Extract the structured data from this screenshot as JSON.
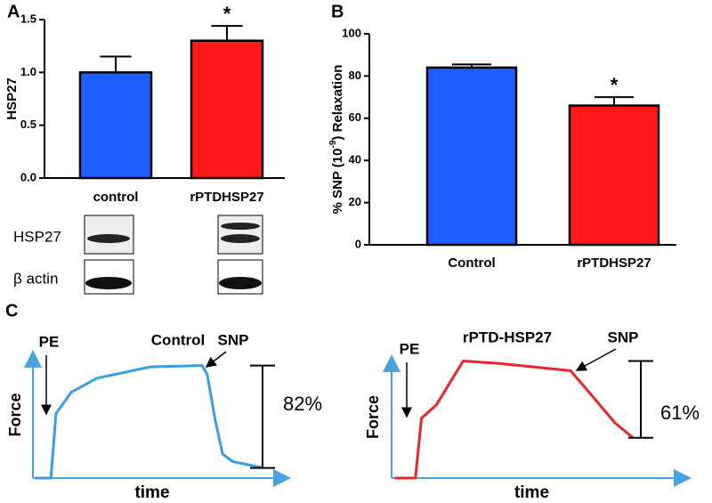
{
  "chart_data": [
    {
      "type": "bar",
      "panel": "A",
      "y_label": "HSP27",
      "categories": [
        "control",
        "rPTDHSP27"
      ],
      "values": [
        1.0,
        1.3
      ],
      "errors": [
        0.15,
        0.14
      ],
      "colors": [
        "#1f5eff",
        "#ff1a1a"
      ],
      "ylim": [
        0,
        1.5
      ],
      "yticks": [
        {
          "value": 0,
          "label": "0.0"
        },
        0.5,
        {
          "value": 1,
          "label": "1.0"
        },
        1.5
      ],
      "significance": [
        null,
        "*"
      ],
      "blot_labels": [
        "HSP27",
        "β actin"
      ]
    },
    {
      "type": "bar",
      "panel": "B",
      "y_label_parts": [
        "% SNP (10",
        "-9",
        ") Relaxation"
      ],
      "categories": [
        "Control",
        "rPTDHSP27"
      ],
      "values": [
        84,
        66
      ],
      "errors": [
        1.5,
        4
      ],
      "colors": [
        "#1f5eff",
        "#ff1a1a"
      ],
      "ylim": [
        0,
        100
      ],
      "yticks": [
        0,
        20,
        40,
        60,
        80,
        100
      ],
      "significance": [
        null,
        "*"
      ]
    },
    {
      "type": "line",
      "panel": "C",
      "title": "Control",
      "x_label": "time",
      "y_label": "Force",
      "x": [
        1,
        7,
        9,
        15,
        25,
        46,
        66,
        68,
        71,
        74,
        78,
        90
      ],
      "values": [
        0,
        0,
        51,
        68,
        79,
        88,
        89,
        82,
        47,
        19,
        13,
        8
      ],
      "color": "#3a9ee0",
      "xlim": [
        0,
        100
      ],
      "ylim": [
        0,
        100
      ],
      "annotations": {
        "pe": "PE",
        "snp": "SNP",
        "relaxation": "82%"
      }
    },
    {
      "type": "line",
      "title": "rPTD-HSP27",
      "x_label": "time",
      "y_label": "Force",
      "x": [
        1,
        8,
        10,
        15,
        24,
        36,
        60,
        66,
        75,
        81
      ],
      "values": [
        0,
        0,
        49,
        60,
        96,
        94,
        88,
        71,
        45,
        33
      ],
      "color": "#e8262b",
      "xlim": [
        0,
        100
      ],
      "ylim": [
        0,
        100
      ],
      "annotations": {
        "pe": "PE",
        "snp": "SNP",
        "relaxation": "61%"
      }
    }
  ]
}
